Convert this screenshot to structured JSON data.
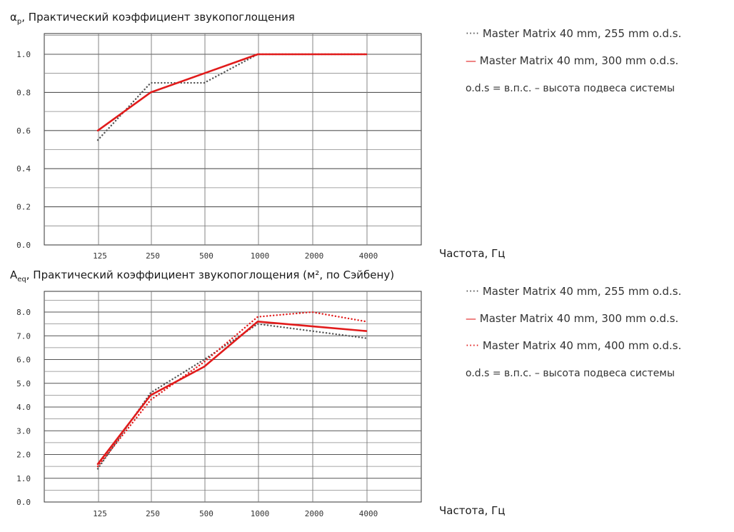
{
  "chart_data": [
    {
      "type": "line",
      "title": "αp, Практический коэффициент звукопоглощения",
      "title_main": "α",
      "title_sub": "p",
      "title_rest": ", Практический коэффициент звукопоглощения",
      "xlabel": "Частота, Гц",
      "categories": [
        "125",
        "250",
        "500",
        "1000",
        "2000",
        "4000"
      ],
      "yticks": [
        "0.0",
        "0.2",
        "0.4",
        "0.6",
        "0.8",
        "1.0"
      ],
      "ylim": [
        0,
        1.0
      ],
      "grid": true,
      "legend_position": "right",
      "series": [
        {
          "name": "Master Matrix 40 mm, 255 mm o.d.s.",
          "style": "dotted",
          "color": "#555555",
          "values": [
            0.55,
            0.85,
            0.85,
            1.0,
            1.0,
            1.0
          ]
        },
        {
          "name": "Master Matrix 40 mm, 300 mm o.d.s.",
          "style": "solid",
          "color": "#e11b1b",
          "values": [
            0.6,
            0.8,
            0.9,
            1.0,
            1.0,
            1.0
          ]
        }
      ],
      "legend": [
        {
          "marker": "····",
          "label": "Master Matrix 40 mm, 255 mm o.d.s.",
          "color": "#555555"
        },
        {
          "marker": "—",
          "label": "Master Matrix 40 mm, 300 mm o.d.s.",
          "color": "#e11b1b"
        }
      ],
      "note": "o.d.s = в.п.с. – высота подвеса системы"
    },
    {
      "type": "line",
      "title": "Aeq, Практический коэффициент звукопоглощения (м², по Сэйбену)",
      "title_main": "A",
      "title_sub": "eq",
      "title_rest": ", Практический коэффициент звукопоглощения (м², по Сэйбену)",
      "xlabel": "Частота, Гц",
      "categories": [
        "125",
        "250",
        "500",
        "1000",
        "2000",
        "4000"
      ],
      "yticks": [
        "0.0",
        "1.0",
        "2.0",
        "3.0",
        "4.0",
        "5.0",
        "6.0",
        "7.0",
        "8.0"
      ],
      "ylim": [
        0,
        8.0
      ],
      "grid": true,
      "legend_position": "right",
      "series": [
        {
          "name": "Master Matrix 40 mm, 255 mm o.d.s.",
          "style": "dotted",
          "color": "#555555",
          "values": [
            1.4,
            4.6,
            6.0,
            7.5,
            7.2,
            6.9
          ]
        },
        {
          "name": "Master Matrix 40 mm, 300 mm o.d.s.",
          "style": "solid",
          "color": "#e11b1b",
          "values": [
            1.6,
            4.5,
            5.7,
            7.6,
            7.4,
            7.2
          ]
        },
        {
          "name": "Master Matrix 40 mm, 400 mm o.d.s.",
          "style": "dotted",
          "color": "#e11b1b",
          "values": [
            1.5,
            4.3,
            5.9,
            7.8,
            8.0,
            7.6
          ]
        }
      ],
      "legend": [
        {
          "marker": "····",
          "label": "Master Matrix 40 mm, 255 mm o.d.s.",
          "color": "#555555"
        },
        {
          "marker": "—",
          "label": "Master Matrix 40 mm, 300 mm o.d.s.",
          "color": "#e11b1b"
        },
        {
          "marker": "····",
          "label": "Master Matrix 40 mm, 400 mm o.d.s.",
          "color": "#e11b1b"
        }
      ],
      "note": "o.d.s = в.п.с. – высота подвеса системы"
    }
  ]
}
